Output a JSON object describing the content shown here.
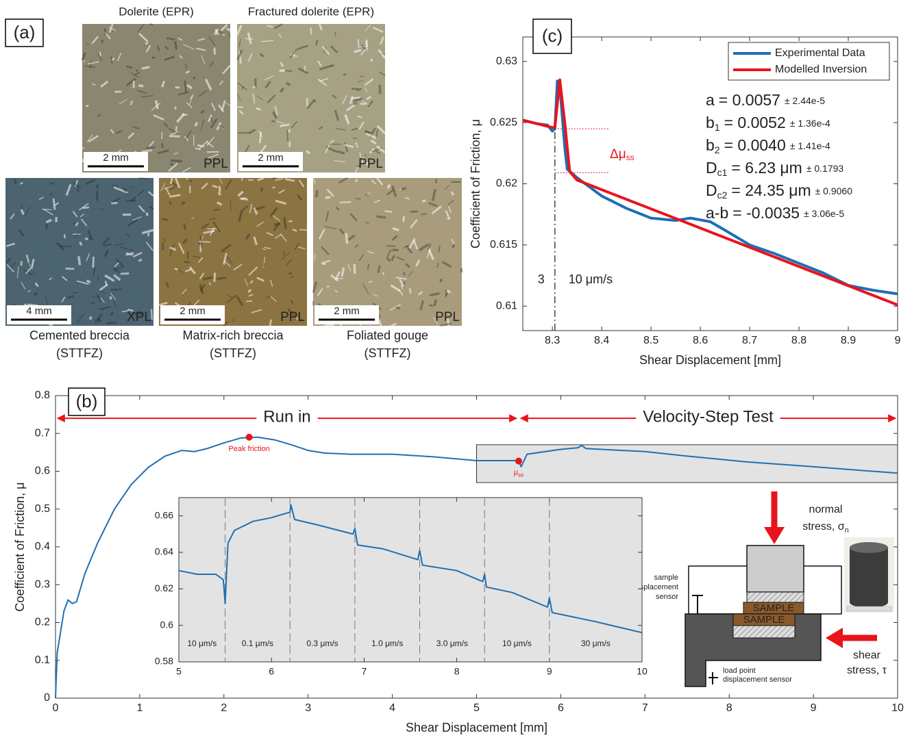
{
  "panel_a": {
    "label": "(a)",
    "images": [
      {
        "title": "Dolerite (EPR)",
        "scale": "2 mm",
        "light": "PPL",
        "color": "#8a8670"
      },
      {
        "title": "Fractured dolerite (EPR)",
        "scale": "2 mm",
        "light": "PPL",
        "color": "#a7a184"
      },
      {
        "caption": "Cemented breccia",
        "caption2": "(STTFZ)",
        "scale": "4 mm",
        "light": "XPL",
        "color": "#4c6470"
      },
      {
        "caption": "Matrix-rich breccia",
        "caption2": "(STTFZ)",
        "scale": "2 mm",
        "light": "PPL",
        "color": "#8c7442"
      },
      {
        "caption": "Foliated gouge",
        "caption2": "(STTFZ)",
        "scale": "2 mm",
        "light": "PPL",
        "color": "#a99c7c"
      }
    ]
  },
  "chart_data": [
    {
      "type": "line",
      "label": "(c)",
      "x_label": "Shear Displacement [mm]",
      "y_label": "Coefficient of Friction, μ",
      "xlim": [
        8.24,
        9
      ],
      "ylim": [
        0.608,
        0.632
      ],
      "xticks": [
        8.3,
        8.4,
        8.5,
        8.6,
        8.7,
        8.8,
        8.9,
        9
      ],
      "yticks": [
        0.61,
        0.615,
        0.62,
        0.625,
        0.63
      ],
      "legend": "top-right",
      "series": [
        {
          "name": "Experimental Data",
          "color": "#1f6fb4",
          "x": [
            8.24,
            8.27,
            8.29,
            8.3,
            8.305,
            8.31,
            8.315,
            8.325,
            8.33,
            8.35,
            8.4,
            8.45,
            8.5,
            8.55,
            8.58,
            8.62,
            8.65,
            8.7,
            8.75,
            8.8,
            8.85,
            8.9,
            8.95,
            9
          ],
          "values": [
            0.6252,
            0.6249,
            0.6248,
            0.6243,
            0.6245,
            0.6284,
            0.628,
            0.623,
            0.6212,
            0.6205,
            0.619,
            0.618,
            0.6172,
            0.617,
            0.6172,
            0.6169,
            0.6162,
            0.615,
            0.6143,
            0.6135,
            0.6127,
            0.6117,
            0.6113,
            0.611
          ]
        },
        {
          "name": "Modelled Inversion",
          "color": "#e8141c",
          "x": [
            8.24,
            8.3,
            8.305,
            8.315,
            8.325,
            8.335,
            8.35,
            9
          ],
          "values": [
            0.6252,
            0.6246,
            0.6246,
            0.6285,
            0.625,
            0.621,
            0.6203,
            0.6101
          ]
        }
      ],
      "step_x": 8.305,
      "step_labels": [
        "3",
        "10 μm/s"
      ],
      "delta_levels": [
        0.6245,
        0.6209
      ],
      "delta_label": "Δμ",
      "delta_sub": "ss",
      "parameters": [
        {
          "symbol": "a",
          "text": "= 0.0057",
          "error": "± 2.44e-5"
        },
        {
          "symbol": "b",
          "sub": "1",
          "text": "= 0.0052",
          "error": "± 1.36e-4"
        },
        {
          "symbol": "b",
          "sub": "2",
          "text": "= 0.0040",
          "error": "± 1.41e-4"
        },
        {
          "symbol": "D",
          "sub": "c1",
          "text": "= 6.23 μm",
          "error": "± 0.1793"
        },
        {
          "symbol": "D",
          "sub": "c2",
          "text": "= 24.35 μm",
          "error": "± 0.9060"
        },
        {
          "symbol": "a-b",
          "text": "= -0.0035",
          "error": "± 3.06e-5"
        }
      ]
    },
    {
      "type": "line",
      "label": "(b)",
      "x_label": "Shear Displacement [mm]",
      "y_label": "Coefficient of Friction, μ",
      "xlim": [
        0,
        10
      ],
      "ylim": [
        0,
        0.8
      ],
      "xticks": [
        0,
        1,
        2,
        3,
        4,
        5,
        6,
        7,
        8,
        9,
        10
      ],
      "yticks": [
        0,
        0.1,
        0.2,
        0.3,
        0.4,
        0.5,
        0.6,
        0.7,
        0.8
      ],
      "series": [
        {
          "color": "#1f6fb4",
          "x": [
            0,
            0.02,
            0.1,
            0.15,
            0.2,
            0.25,
            0.35,
            0.5,
            0.7,
            0.9,
            1.1,
            1.3,
            1.5,
            1.65,
            1.8,
            2.0,
            2.2,
            2.4,
            2.6,
            2.8,
            3.0,
            3.2,
            3.5,
            4.0,
            4.5,
            5.0,
            5.5,
            5.53,
            5.6,
            6.0,
            6.2,
            6.25,
            6.3,
            7,
            7.5,
            8.2,
            9,
            10
          ],
          "values": [
            0,
            0.12,
            0.23,
            0.26,
            0.25,
            0.255,
            0.33,
            0.41,
            0.5,
            0.565,
            0.61,
            0.64,
            0.655,
            0.652,
            0.66,
            0.675,
            0.688,
            0.69,
            0.683,
            0.67,
            0.655,
            0.648,
            0.645,
            0.645,
            0.638,
            0.628,
            0.628,
            0.612,
            0.645,
            0.658,
            0.662,
            0.668,
            0.66,
            0.652,
            0.64,
            0.625,
            0.612,
            0.595
          ]
        }
      ],
      "points": [
        {
          "x": 2.3,
          "y": 0.69,
          "label": "Peak friction"
        },
        {
          "x": 5.5,
          "y": 0.627,
          "label": "μ",
          "sub": "ss"
        }
      ],
      "arrow_y": 0.74,
      "ranges": [
        {
          "label": "Run in",
          "x": [
            0,
            5.5
          ]
        },
        {
          "label": "Velocity-Step Test",
          "x": [
            5.5,
            10
          ]
        }
      ],
      "zoom_box": {
        "x": [
          5,
          10
        ],
        "y": [
          0.57,
          0.67
        ]
      }
    },
    {
      "type": "line",
      "xlim": [
        5,
        10
      ],
      "ylim": [
        0.58,
        0.67
      ],
      "xticks": [
        5,
        6,
        7,
        8,
        9,
        10
      ],
      "yticks": [
        0.58,
        0.6,
        0.62,
        0.64,
        0.66
      ],
      "series": [
        {
          "color": "#1f6fb4",
          "x": [
            5,
            5.2,
            5.4,
            5.48,
            5.5,
            5.53,
            5.6,
            5.8,
            6.0,
            6.2,
            6.21,
            6.25,
            6.5,
            6.88,
            6.9,
            6.93,
            7.2,
            7.58,
            7.6,
            7.63,
            8.0,
            8.28,
            8.3,
            8.32,
            8.6,
            8.98,
            9.0,
            9.03,
            9.5,
            10
          ],
          "values": [
            0.63,
            0.628,
            0.628,
            0.625,
            0.612,
            0.645,
            0.652,
            0.657,
            0.659,
            0.662,
            0.666,
            0.658,
            0.655,
            0.65,
            0.653,
            0.644,
            0.642,
            0.636,
            0.641,
            0.633,
            0.63,
            0.624,
            0.628,
            0.621,
            0.618,
            0.61,
            0.615,
            0.607,
            0.602,
            0.596
          ]
        }
      ],
      "step_boundaries": [
        5.5,
        6.2,
        6.9,
        7.6,
        8.3,
        9.0
      ],
      "step_labels": [
        "10 μm/s",
        "0.1 μm/s",
        "0.3 μm/s",
        "1.0 μm/s",
        "3.0 μm/s",
        "10 μm/s",
        "30 μm/s"
      ]
    }
  ],
  "apparatus": {
    "normal": "normal",
    "normal2": "stress, σ",
    "normal_sub": "n",
    "shear": "shear",
    "shear2": "stress, τ",
    "sample": "SAMPLE",
    "sensor1": "sample",
    "sensor2": "displacement",
    "sensor3": "sensor",
    "load1": "load point",
    "load2": "displacement sensor"
  }
}
